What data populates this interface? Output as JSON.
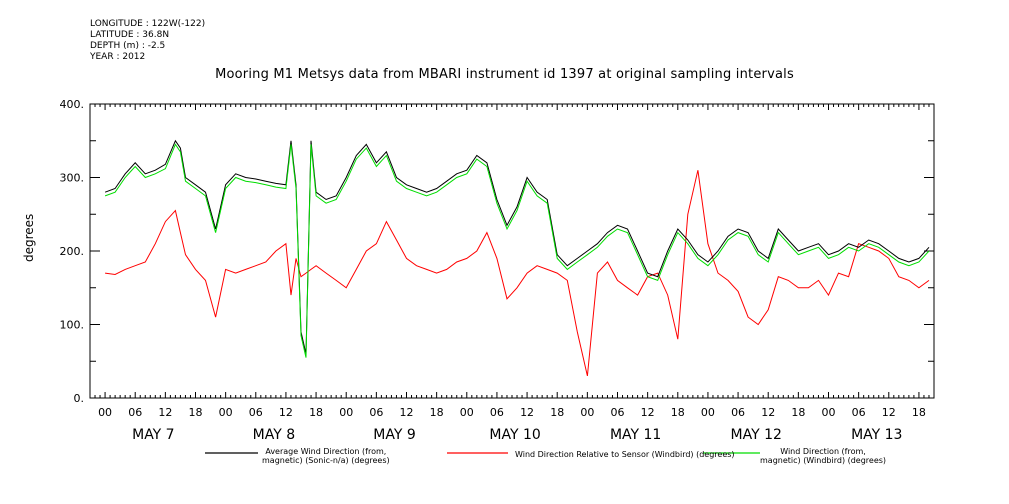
{
  "meta": {
    "longitude": "LONGITUDE : 122W(-122)",
    "latitude": "LATITUDE : 36.8N",
    "depth": "DEPTH (m) : -2.5",
    "year": "YEAR : 2012"
  },
  "chart_data": {
    "type": "line",
    "title": "Mooring M1 Metsys data from MBARI instrument id 1397 at original sampling intervals",
    "ylabel": "degrees",
    "xlabel": "",
    "ylim": [
      0,
      400
    ],
    "xlim_hours": [
      -3,
      165
    ],
    "grid": false,
    "yticks": [
      0,
      100,
      200,
      300,
      400
    ],
    "ytick_labels": [
      "0.",
      "100.",
      "200.",
      "300.",
      "400."
    ],
    "x_hour_ticks": [
      "00",
      "06",
      "12",
      "18",
      "00",
      "06",
      "12",
      "18",
      "00",
      "06",
      "12",
      "18",
      "00",
      "06",
      "12",
      "18",
      "00",
      "06",
      "12",
      "18",
      "00",
      "06",
      "12",
      "18",
      "00",
      "06",
      "12",
      "18"
    ],
    "x_day_labels": [
      "MAY  7",
      "MAY  8",
      "MAY  9",
      "MAY 10",
      "MAY 11",
      "MAY 12",
      "MAY 13"
    ],
    "legend_placement": "bottom",
    "series": [
      {
        "name": "Average Wind Direction (from,\nmagnetic) (Sonic-n/a) (degrees)",
        "color": "#000000",
        "x": [
          0,
          2,
          4,
          6,
          8,
          10,
          12,
          14,
          15,
          16,
          18,
          20,
          22,
          24,
          26,
          28,
          30,
          32,
          34,
          36,
          37,
          38,
          39,
          40,
          41,
          42,
          44,
          46,
          48,
          50,
          52,
          54,
          56,
          58,
          60,
          62,
          64,
          66,
          68,
          70,
          72,
          74,
          76,
          78,
          80,
          82,
          84,
          86,
          88,
          90,
          92,
          94,
          96,
          98,
          100,
          102,
          104,
          106,
          108,
          110,
          112,
          114,
          116,
          118,
          120,
          122,
          124,
          126,
          128,
          130,
          132,
          134,
          136,
          138,
          140,
          142,
          144,
          146,
          148,
          150,
          152,
          154,
          156,
          158,
          160,
          162,
          164
        ],
        "values": [
          280,
          285,
          305,
          320,
          305,
          310,
          318,
          350,
          340,
          300,
          290,
          280,
          230,
          290,
          305,
          300,
          298,
          295,
          292,
          290,
          350,
          290,
          90,
          60,
          350,
          280,
          270,
          275,
          300,
          330,
          345,
          320,
          335,
          300,
          290,
          285,
          280,
          285,
          295,
          305,
          310,
          330,
          320,
          270,
          235,
          260,
          300,
          280,
          270,
          195,
          180,
          190,
          200,
          210,
          225,
          235,
          230,
          200,
          170,
          165,
          200,
          230,
          215,
          195,
          185,
          200,
          220,
          230,
          225,
          200,
          190,
          230,
          215,
          200,
          205,
          210,
          195,
          200,
          210,
          205,
          215,
          210,
          200,
          190,
          185,
          190,
          205
        ]
      },
      {
        "name": "Wind Direction Relative to Sensor (Windbird) (degrees)",
        "color": "#ff0000",
        "x": [
          0,
          2,
          4,
          6,
          8,
          10,
          12,
          14,
          15,
          16,
          18,
          20,
          22,
          24,
          26,
          28,
          30,
          32,
          34,
          36,
          37,
          38,
          39,
          40,
          41,
          42,
          44,
          46,
          48,
          50,
          52,
          54,
          56,
          58,
          60,
          62,
          64,
          66,
          68,
          70,
          72,
          74,
          76,
          78,
          80,
          82,
          84,
          86,
          88,
          90,
          92,
          94,
          96,
          98,
          100,
          102,
          104,
          106,
          108,
          110,
          112,
          114,
          116,
          118,
          120,
          122,
          124,
          126,
          128,
          130,
          132,
          134,
          136,
          138,
          140,
          142,
          144,
          146,
          148,
          150,
          152,
          154,
          156,
          158,
          160,
          162,
          164
        ],
        "values": [
          170,
          168,
          175,
          180,
          185,
          210,
          240,
          255,
          225,
          195,
          175,
          160,
          110,
          175,
          170,
          175,
          180,
          185,
          200,
          210,
          140,
          190,
          165,
          170,
          175,
          180,
          170,
          160,
          150,
          175,
          200,
          210,
          240,
          215,
          190,
          180,
          175,
          170,
          175,
          185,
          190,
          200,
          225,
          190,
          135,
          150,
          170,
          180,
          175,
          170,
          160,
          90,
          30,
          170,
          185,
          160,
          150,
          140,
          165,
          170,
          140,
          80,
          250,
          310,
          210,
          170,
          160,
          145,
          110,
          100,
          120,
          165,
          160,
          150,
          150,
          160,
          140,
          170,
          165,
          210,
          205,
          200,
          190,
          165,
          160,
          150,
          160
        ]
      },
      {
        "name": "Wind Direction (from,\nmagnetic) (Windbird) (degrees)",
        "color": "#00dd00",
        "x": [
          0,
          2,
          4,
          6,
          8,
          10,
          12,
          14,
          15,
          16,
          18,
          20,
          22,
          24,
          26,
          28,
          30,
          32,
          34,
          36,
          37,
          38,
          39,
          40,
          41,
          42,
          44,
          46,
          48,
          50,
          52,
          54,
          56,
          58,
          60,
          62,
          64,
          66,
          68,
          70,
          72,
          74,
          76,
          78,
          80,
          82,
          84,
          86,
          88,
          90,
          92,
          94,
          96,
          98,
          100,
          102,
          104,
          106,
          108,
          110,
          112,
          114,
          116,
          118,
          120,
          122,
          124,
          126,
          128,
          130,
          132,
          134,
          136,
          138,
          140,
          142,
          144,
          146,
          148,
          150,
          152,
          154,
          156,
          158,
          160,
          162,
          164
        ],
        "values": [
          275,
          280,
          300,
          315,
          300,
          305,
          312,
          345,
          335,
          295,
          285,
          275,
          225,
          285,
          300,
          295,
          293,
          290,
          287,
          285,
          345,
          285,
          85,
          55,
          345,
          275,
          265,
          270,
          295,
          325,
          340,
          315,
          330,
          295,
          285,
          280,
          275,
          280,
          290,
          300,
          305,
          325,
          315,
          265,
          230,
          255,
          295,
          275,
          265,
          190,
          175,
          185,
          195,
          205,
          220,
          230,
          225,
          195,
          165,
          160,
          195,
          225,
          210,
          190,
          180,
          195,
          215,
          225,
          220,
          195,
          185,
          225,
          210,
          195,
          200,
          205,
          190,
          195,
          205,
          200,
          210,
          205,
          195,
          185,
          180,
          185,
          200
        ]
      }
    ]
  }
}
